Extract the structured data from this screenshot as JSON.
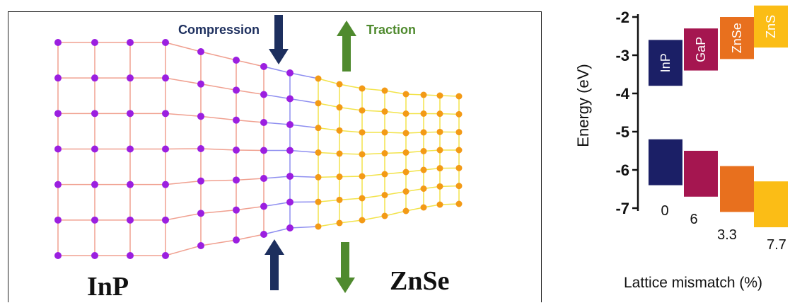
{
  "lattice": {
    "left_material": "InP",
    "right_material": "ZnSe",
    "compression_label": "Compression",
    "traction_label": "Traction",
    "colors": {
      "inp_atom": "#9b1fe0",
      "inp_bond": "#f0a090",
      "interface_bond": "#8f8ff0",
      "znse_atom": "#f39a16",
      "znse_bond": "#f2e34a",
      "compression_arrow": "#1d2f5e",
      "traction_arrow": "#4f8a2e"
    }
  },
  "chart_data": {
    "type": "bar",
    "ylabel": "Energy (eV)",
    "xlabel": "Lattice mismatch (%)",
    "ylim": [
      -7,
      -2
    ],
    "yticks": [
      -2,
      -3,
      -4,
      -5,
      -6,
      -7
    ],
    "materials": [
      {
        "name": "InP",
        "lattice_mismatch_label": "0",
        "cb_top": -2.6,
        "cb_bottom": -3.8,
        "vb_top": -5.2,
        "vb_bottom": -6.4,
        "color": "#1b1f66"
      },
      {
        "name": "GaP",
        "lattice_mismatch_label": "6",
        "cb_top": -2.3,
        "cb_bottom": -3.4,
        "vb_top": -5.5,
        "vb_bottom": -6.7,
        "color": "#a51650"
      },
      {
        "name": "ZnSe",
        "lattice_mismatch_label": "3.3",
        "cb_top": -2.0,
        "cb_bottom": -3.1,
        "vb_top": -5.9,
        "vb_bottom": -7.1,
        "color": "#e8701e"
      },
      {
        "name": "ZnS",
        "lattice_mismatch_label": "7.7",
        "cb_top": -1.7,
        "cb_bottom": -2.8,
        "vb_top": -6.3,
        "vb_bottom": -7.5,
        "color": "#fbbd16"
      }
    ]
  }
}
